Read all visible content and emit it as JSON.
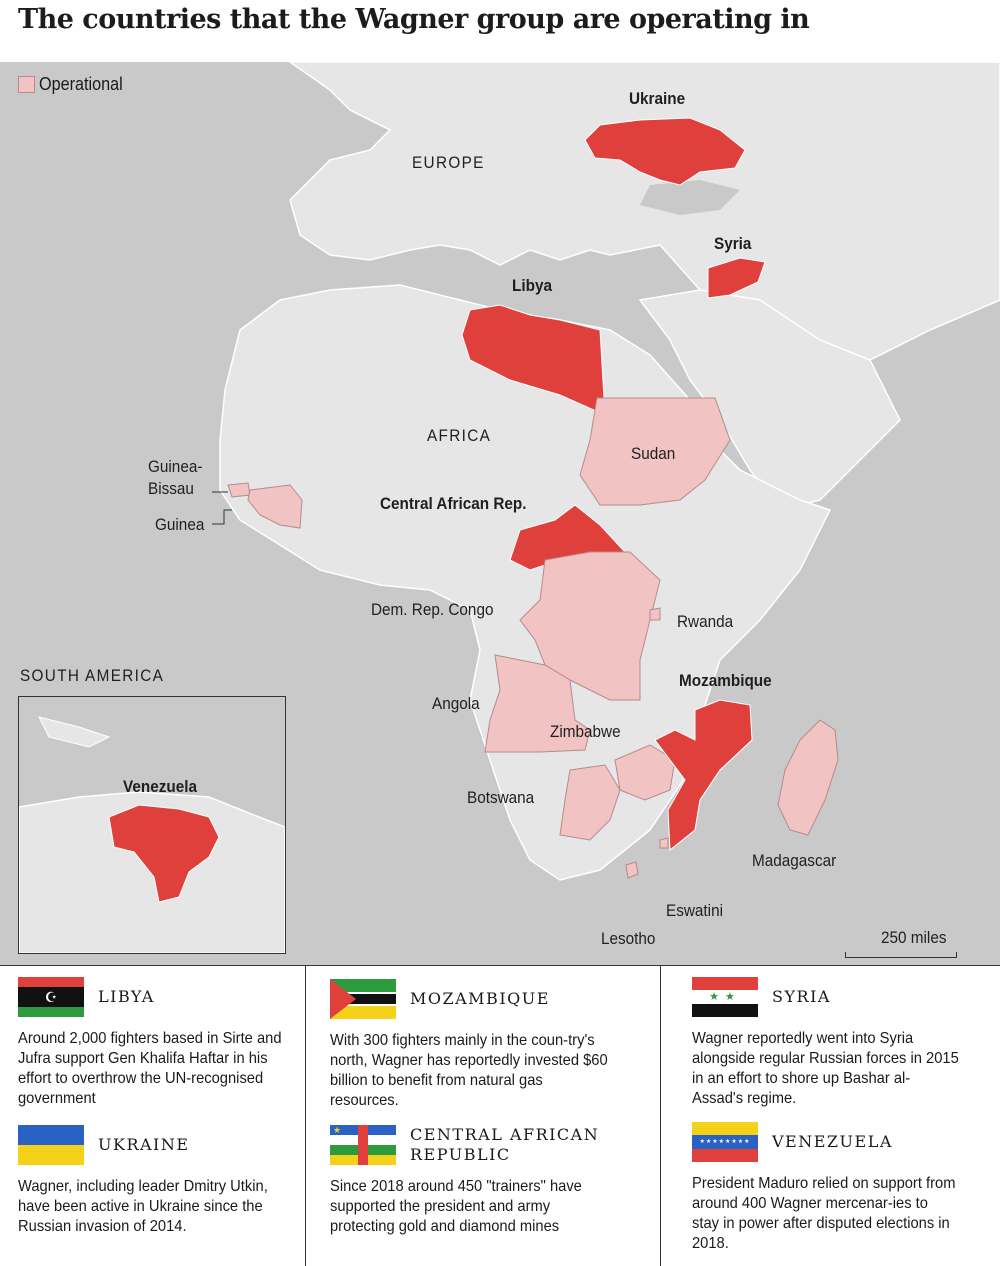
{
  "title": "The countries that the Wagner group are operating in",
  "legend": {
    "label": "Operational"
  },
  "colors": {
    "operating": "#e0403b",
    "operational": "#f1c3c3",
    "land": "#e6e6e6",
    "sea": "#c9c9c9",
    "border": "#ffffff"
  },
  "regions": {
    "europe": "EUROPE",
    "africa": "AFRICA",
    "south_america": "SOUTH AMERICA"
  },
  "country_labels": {
    "ukraine": "Ukraine",
    "syria": "Syria",
    "libya": "Libya",
    "sudan": "Sudan",
    "guinea_bissau": "Guinea-\nBissau",
    "guinea": "Guinea",
    "car": "Central African Rep.",
    "drc": "Dem. Rep. Congo",
    "rwanda": "Rwanda",
    "mozambique": "Mozambique",
    "angola": "Angola",
    "zimbabwe": "Zimbabwe",
    "botswana": "Botswana",
    "madagascar": "Madagascar",
    "eswatini": "Eswatini",
    "lesotho": "Lesotho",
    "venezuela": "Venezuela"
  },
  "scale": "250 miles",
  "panels": [
    {
      "name": "LIBYA",
      "flag": "libya-flag",
      "text": "Around 2,000 fighters based in Sirte and Jufra support Gen Khalifa Haftar in his effort to overthrow the UN-recognised government"
    },
    {
      "name": "MOZAMBIQUE",
      "flag": "mozambique-flag",
      "text": "With 300 fighters mainly in the coun-try's north, Wagner has reportedly invested $60 billion to benefit from natural gas resources."
    },
    {
      "name": "SYRIA",
      "flag": "syria-flag",
      "text": "Wagner reportedly went into Syria alongside regular Russian forces in 2015 in an effort to shore up Bashar al-Assad's regime."
    },
    {
      "name": "UKRAINE",
      "flag": "ukraine-flag",
      "text": "Wagner, including leader Dmitry Utkin, have been active in Ukraine since the Russian invasion of 2014."
    },
    {
      "name": "CENTRAL AFRICAN REPUBLIC",
      "name_line1": "CENTRAL AFRICAN",
      "name_line2": "REPUBLIC",
      "flag": "car-flag",
      "text": "Since 2018 around 450 \"trainers\" have supported the president and army protecting gold and diamond mines"
    },
    {
      "name": "VENEZUELA",
      "flag": "venezuela-flag",
      "text": "President Maduro relied on support from around 400 Wagner mercenar-ies to stay in power after disputed elections in 2018."
    }
  ]
}
